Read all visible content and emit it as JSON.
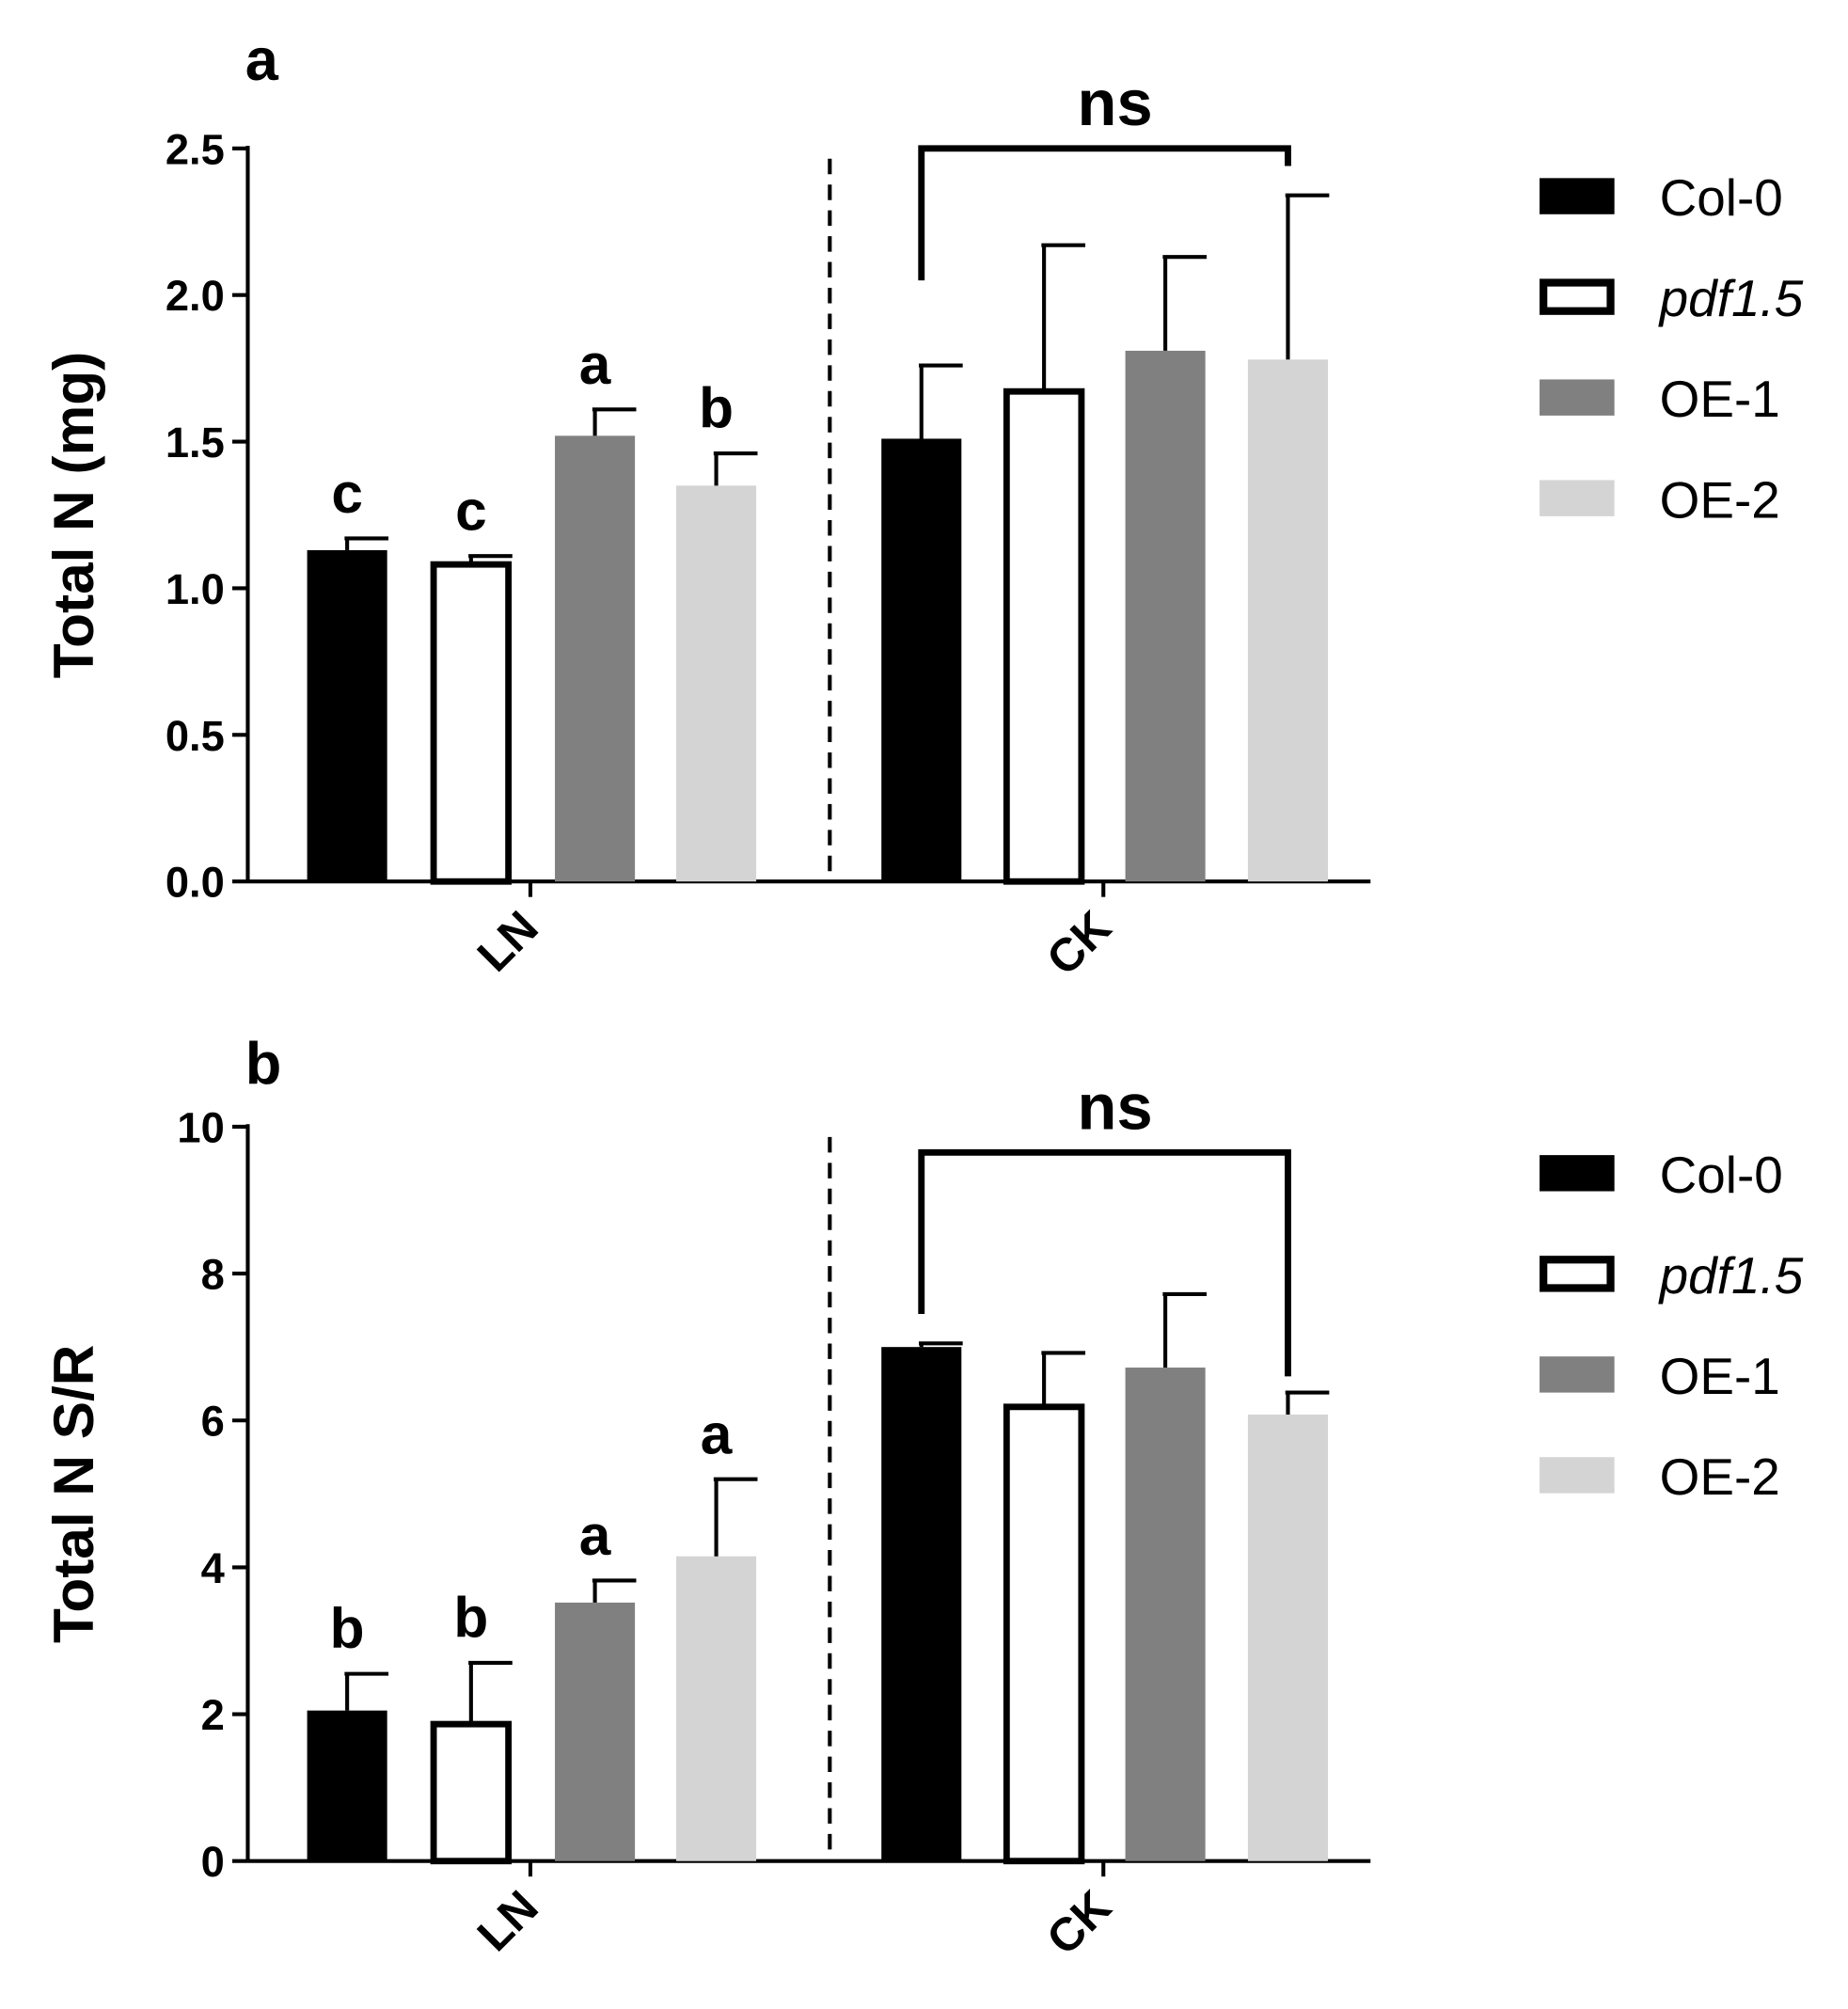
{
  "chart_data": [
    {
      "panel": "a",
      "type": "bar",
      "ylabel": "Total N (mg)",
      "ylim": [
        0,
        2.5
      ],
      "yticks": [
        "0.0",
        "0.5",
        "1.0",
        "1.5",
        "2.0",
        "2.5"
      ],
      "ytick_values": [
        0,
        0.5,
        1.0,
        1.5,
        2.0,
        2.5
      ],
      "groups": [
        "LN",
        "CK"
      ],
      "series": [
        {
          "name": "Col-0",
          "italic": false,
          "fill": "#000000",
          "values": [
            1.13,
            1.51
          ],
          "errors": [
            0.04,
            0.25
          ],
          "letters": [
            "c",
            ""
          ]
        },
        {
          "name": "pdf1.5",
          "italic": true,
          "fill": "#ffffff",
          "values": [
            1.09,
            1.68
          ],
          "errors": [
            0.02,
            0.49
          ],
          "letters": [
            "c",
            ""
          ]
        },
        {
          "name": "OE-1",
          "italic": false,
          "fill": "#808080",
          "values": [
            1.52,
            1.81
          ],
          "errors": [
            0.09,
            0.32
          ],
          "letters": [
            "a",
            ""
          ]
        },
        {
          "name": "OE-2",
          "italic": false,
          "fill": "#d4d4d4",
          "values": [
            1.35,
            1.78
          ],
          "errors": [
            0.11,
            0.56
          ],
          "letters": [
            "b",
            ""
          ]
        }
      ],
      "significance": {
        "group": "CK",
        "label": "ns",
        "from_series": 0,
        "to_series": 3,
        "height": 2.5
      },
      "legend_position": "right"
    },
    {
      "panel": "b",
      "type": "bar",
      "ylabel": "Total N S/R",
      "ylim": [
        0,
        10
      ],
      "yticks": [
        "0",
        "2",
        "4",
        "6",
        "8",
        "10"
      ],
      "ytick_values": [
        0,
        2,
        4,
        6,
        8,
        10
      ],
      "groups": [
        "LN",
        "CK"
      ],
      "series": [
        {
          "name": "Col-0",
          "italic": false,
          "fill": "#000000",
          "values": [
            2.05,
            7.0
          ],
          "errors": [
            0.5,
            0.05
          ],
          "letters": [
            "b",
            ""
          ]
        },
        {
          "name": "pdf1.5",
          "italic": true,
          "fill": "#ffffff",
          "values": [
            1.9,
            6.22
          ],
          "errors": [
            0.8,
            0.7
          ],
          "letters": [
            "b",
            ""
          ]
        },
        {
          "name": "OE-1",
          "italic": false,
          "fill": "#808080",
          "values": [
            3.52,
            6.72
          ],
          "errors": [
            0.3,
            1.0
          ],
          "letters": [
            "a",
            ""
          ]
        },
        {
          "name": "OE-2",
          "italic": false,
          "fill": "#d4d4d4",
          "values": [
            4.15,
            6.08
          ],
          "errors": [
            1.05,
            0.3
          ],
          "letters": [
            "a",
            ""
          ]
        }
      ],
      "significance": {
        "group": "CK",
        "label": "ns",
        "from_series": 0,
        "to_series": 3,
        "height": 9.65
      },
      "legend_position": "right"
    }
  ]
}
